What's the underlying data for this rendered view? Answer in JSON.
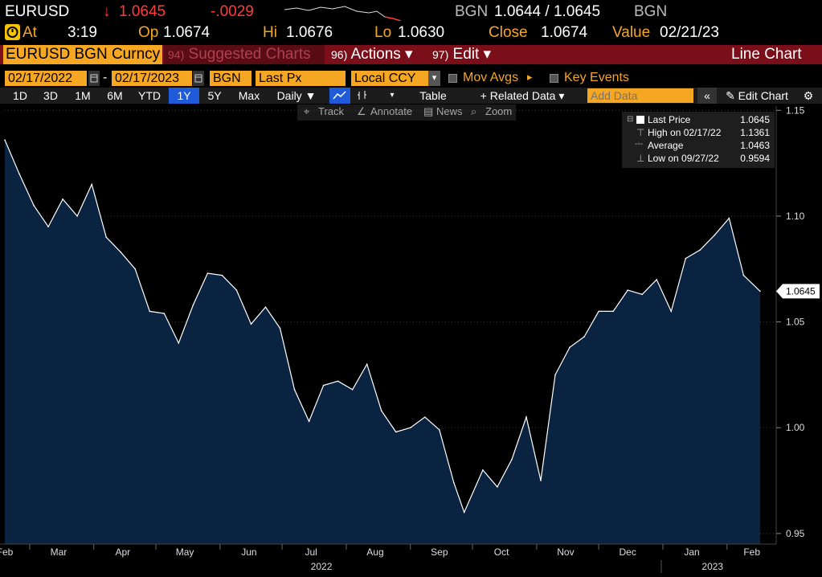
{
  "header": {
    "ticker": "EURUSD",
    "arrow": "↓",
    "last": "1.0645",
    "change": "-.0029",
    "source": "BGN",
    "bid_ask": "1.0644 / 1.0645",
    "source2": "BGN"
  },
  "quote": {
    "at_label": "At",
    "at_value": "3:19",
    "op_label": "Op",
    "op_value": "1.0674",
    "hi_label": "Hi",
    "hi_value": "1.0676",
    "lo_label": "Lo",
    "lo_value": "1.0630",
    "close_label": "Close",
    "close_value": "1.0674",
    "value_label": "Value",
    "value_value": "02/21/23"
  },
  "menubar": {
    "security": "EURUSD BGN Curncy",
    "suggested_num": "94)",
    "suggested": "Suggested Charts",
    "actions_num": "96)",
    "actions": "Actions ▾",
    "edit_num": "97)",
    "edit": "Edit ▾",
    "chart_type": "Line Chart"
  },
  "params": {
    "start_date": "02/17/2022",
    "end_date": "02/17/2023",
    "dash": "-",
    "source": "BGN",
    "field": "Last Px",
    "currency": "Local CCY",
    "mov_avgs": "Mov Avgs",
    "mov_avgs_arrow": "▸",
    "key_events": "Key Events"
  },
  "toolbar": {
    "ranges": [
      "1D",
      "3D",
      "1M",
      "6M",
      "YTD",
      "1Y",
      "5Y",
      "Max"
    ],
    "selected_range": "1Y",
    "periodicity": "Daily ▼",
    "table": "Table",
    "related": "+ Related Data ▾",
    "add_data_placeholder": "Add Data",
    "collapse": "«",
    "edit_chart": "✎ Edit Chart",
    "settings": "⚙"
  },
  "tools": {
    "track": "Track",
    "annotate": "Annotate",
    "news": "News",
    "zoom": "Zoom"
  },
  "legend": {
    "last_label": "Last Price",
    "last_value": "1.0645",
    "high_label": "High on 02/17/22",
    "high_value": "1.1361",
    "avg_label": "Average",
    "avg_value": "1.0463",
    "low_label": "Low on 09/27/22",
    "low_value": "0.9594"
  },
  "colors": {
    "amber": "#f5a623",
    "red": "#ff3b3b",
    "panel_red": "#7a0f1a",
    "area": "#0a2340",
    "select_blue": "#1f5bd8"
  },
  "chart_data": {
    "type": "area",
    "series": [
      {
        "name": "Last Price",
        "x": [
          "2022-02-17",
          "2022-02-24",
          "2022-03-03",
          "2022-03-10",
          "2022-03-17",
          "2022-03-24",
          "2022-03-31",
          "2022-04-07",
          "2022-04-14",
          "2022-04-21",
          "2022-04-28",
          "2022-05-05",
          "2022-05-12",
          "2022-05-19",
          "2022-05-26",
          "2022-06-02",
          "2022-06-09",
          "2022-06-16",
          "2022-06-23",
          "2022-06-30",
          "2022-07-07",
          "2022-07-14",
          "2022-07-21",
          "2022-07-28",
          "2022-08-04",
          "2022-08-11",
          "2022-08-18",
          "2022-08-25",
          "2022-09-01",
          "2022-09-08",
          "2022-09-15",
          "2022-09-22",
          "2022-09-27",
          "2022-10-06",
          "2022-10-13",
          "2022-10-20",
          "2022-10-27",
          "2022-11-03",
          "2022-11-10",
          "2022-11-17",
          "2022-11-24",
          "2022-12-01",
          "2022-12-08",
          "2022-12-15",
          "2022-12-22",
          "2022-12-29",
          "2023-01-05",
          "2023-01-12",
          "2023-01-19",
          "2023-01-26",
          "2023-02-02",
          "2023-02-09",
          "2023-02-17"
        ],
        "y": [
          1.136,
          1.12,
          1.105,
          1.095,
          1.108,
          1.1,
          1.115,
          1.09,
          1.083,
          1.075,
          1.055,
          1.054,
          1.04,
          1.058,
          1.073,
          1.072,
          1.065,
          1.049,
          1.057,
          1.047,
          1.018,
          1.003,
          1.02,
          1.022,
          1.018,
          1.03,
          1.008,
          0.998,
          1.0,
          1.005,
          0.999,
          0.974,
          0.96,
          0.98,
          0.972,
          0.985,
          1.005,
          0.975,
          1.025,
          1.038,
          1.043,
          1.055,
          1.055,
          1.065,
          1.063,
          1.07,
          1.055,
          1.08,
          1.084,
          1.091,
          1.099,
          1.072,
          1.0645
        ]
      }
    ],
    "y_ticks": [
      "1.15",
      "1.10",
      "1.05",
      "1.00",
      "0.95"
    ],
    "ylim": [
      0.945,
      1.152
    ],
    "x_ticks": [
      "Feb",
      "Mar",
      "Apr",
      "May",
      "Jun",
      "Jul",
      "Aug",
      "Sep",
      "Oct",
      "Nov",
      "Dec",
      "Jan",
      "Feb"
    ],
    "year_labels": [
      "2022",
      "2023"
    ],
    "last_label": "1.0645",
    "grid": true
  }
}
